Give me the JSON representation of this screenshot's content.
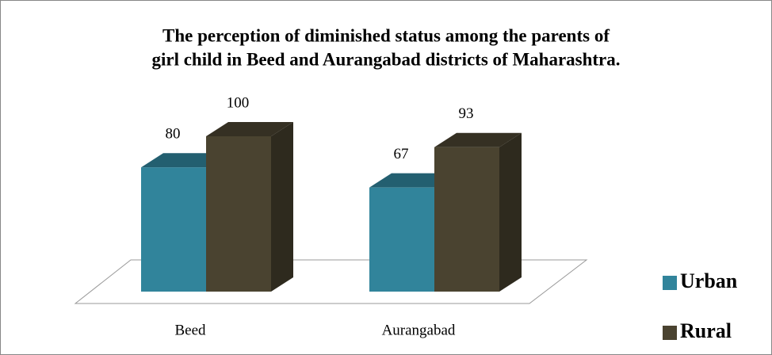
{
  "chart_data": {
    "type": "bar3d",
    "title": [
      "The perception of diminished status among the parents of",
      "girl child in Beed and Aurangabad districts of Maharashtra."
    ],
    "categories": [
      "Beed",
      "Aurangabad"
    ],
    "series": [
      {
        "name": "Urban",
        "color": "#31849b",
        "values": [
          80,
          67
        ]
      },
      {
        "name": "Rural",
        "color": "#4a4330",
        "values": [
          100,
          93
        ]
      }
    ],
    "legend": "right"
  }
}
